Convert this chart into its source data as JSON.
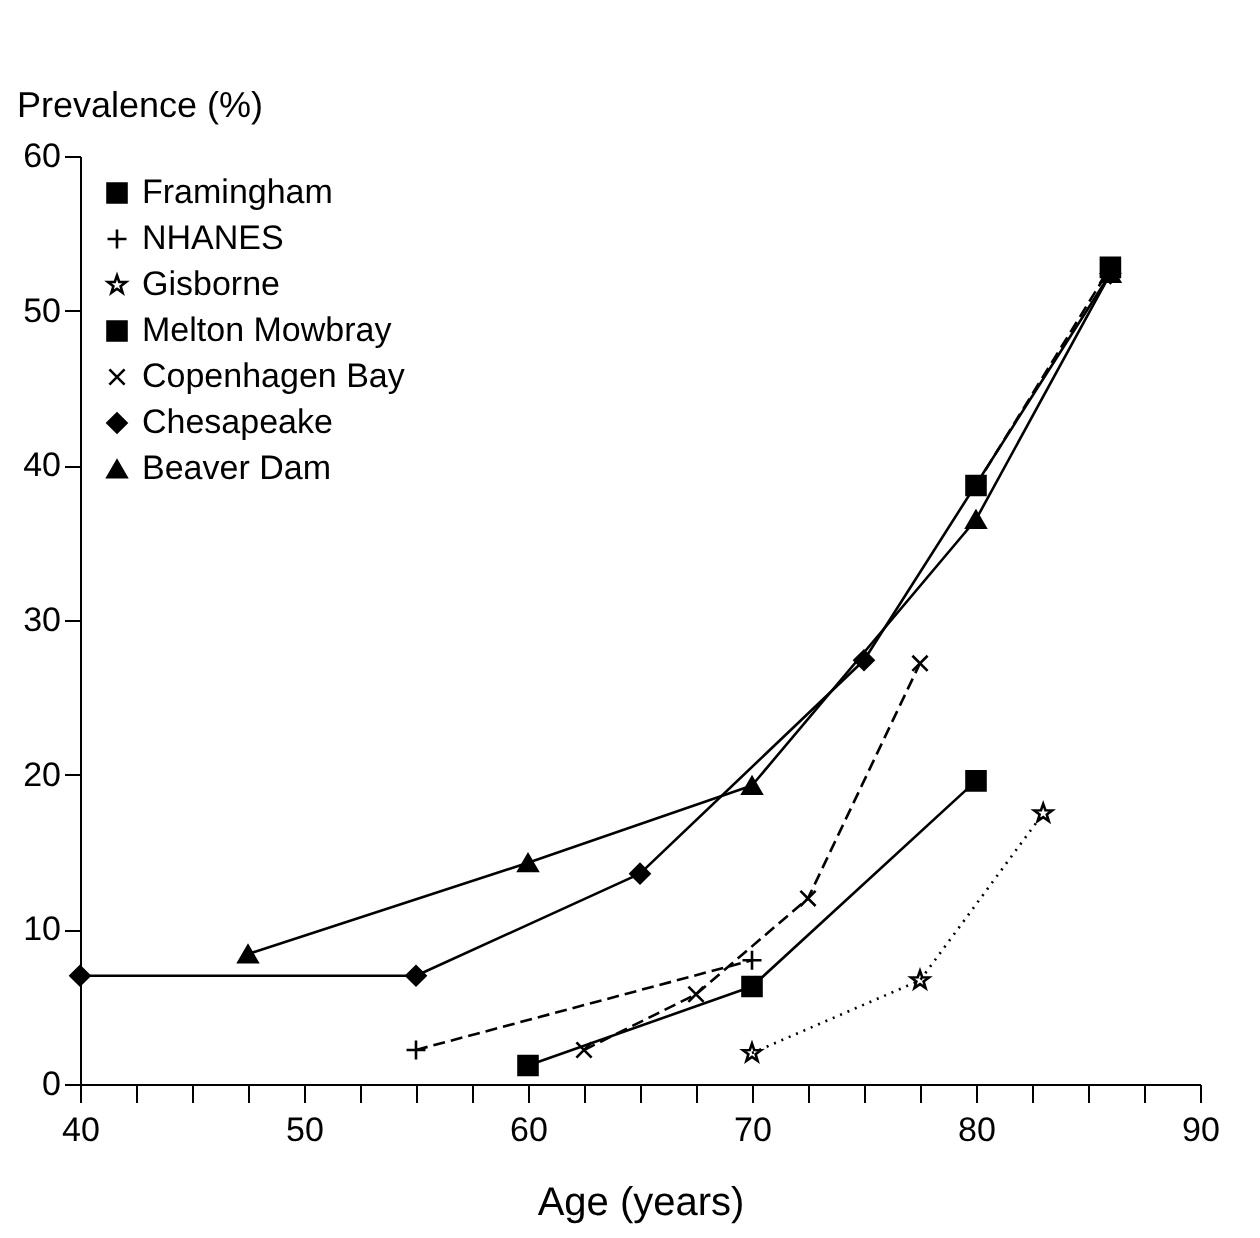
{
  "chart_data": {
    "type": "line",
    "xlabel": "Age (years)",
    "ylabel": "Prevalence (%)",
    "xlim": [
      40,
      90
    ],
    "ylim": [
      0,
      60
    ],
    "xticks": [
      40,
      {
        "value": 42.5,
        "label": null
      },
      {
        "value": 45,
        "label": null
      },
      {
        "value": 47.5,
        "label": null
      },
      50,
      {
        "value": 52.5,
        "label": null
      },
      {
        "value": 55,
        "label": null
      },
      {
        "value": 57.5,
        "label": null
      },
      60,
      {
        "value": 62.5,
        "label": null
      },
      {
        "value": 65,
        "label": null
      },
      {
        "value": 67.5,
        "label": null
      },
      70,
      {
        "value": 72.5,
        "label": null
      },
      {
        "value": 75,
        "label": null
      },
      {
        "value": 77.5,
        "label": null
      },
      80,
      {
        "value": 82.5,
        "label": null
      },
      {
        "value": 85,
        "label": null
      },
      {
        "value": 87.5,
        "label": null
      },
      90
    ],
    "yticks": [
      0,
      10,
      20,
      30,
      40,
      50,
      60
    ],
    "grid": false,
    "legend": "top left",
    "series": [
      {
        "name": "Framingham",
        "color": "#000000",
        "marker": "square",
        "line_style": "solid",
        "x": [
          60,
          70,
          80
        ],
        "values": [
          1.2,
          6.3,
          19.6
        ]
      },
      {
        "name": "NHANES",
        "color": "#000000",
        "marker": "cross",
        "line_style": "dashed",
        "x": [
          55,
          70
        ],
        "values": [
          2.2,
          8
        ]
      },
      {
        "name": "Gisborne",
        "color": "#000000",
        "marker": "star",
        "line_style": "dotted",
        "x": [
          70,
          77.5,
          83
        ],
        "values": [
          2,
          6.7,
          17.5
        ]
      },
      {
        "name": "Melton Mowbray",
        "color": "#000000",
        "marker": "square",
        "line_style": "dashed",
        "x": [
          80,
          86
        ],
        "values": [
          38.7,
          52.8
        ]
      },
      {
        "name": "Copenhagen Bay",
        "color": "#000000",
        "marker": "x",
        "line_style": "dashed",
        "x": [
          62.5,
          67.5,
          72.5,
          77.5
        ],
        "values": [
          2.2,
          5.8,
          12,
          27.2
        ]
      },
      {
        "name": "Chesapeake",
        "color": "#000000",
        "marker": "diamond",
        "line_style": "solid",
        "x": [
          40,
          55,
          65,
          75,
          86
        ],
        "values": [
          7,
          7,
          13.6,
          27.4,
          52.4
        ]
      },
      {
        "name": "Beaver Dam",
        "color": "#000000",
        "marker": "triangle",
        "line_style": "solid",
        "x": [
          47.5,
          60,
          70,
          80,
          86
        ],
        "values": [
          8.4,
          14.3,
          19.3,
          36.5,
          52.4
        ]
      }
    ]
  }
}
